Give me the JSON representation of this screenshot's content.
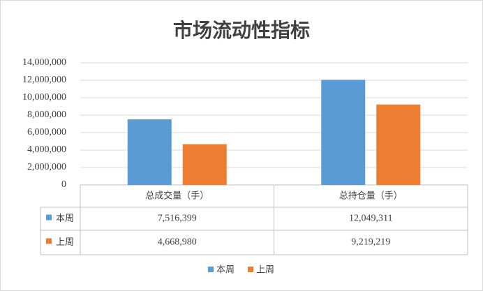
{
  "chart_data": {
    "type": "bar",
    "title": "市场流动性指标",
    "categories": [
      "总成交量（手）",
      "总持仓量（手）"
    ],
    "series": [
      {
        "name": "本周",
        "color": "#5b9bd5",
        "values": [
          7516399,
          12049311
        ],
        "value_labels": [
          "7,516,399",
          "12,049,311"
        ]
      },
      {
        "name": "上周",
        "color": "#ed7d31",
        "values": [
          4668980,
          9219219
        ],
        "value_labels": [
          "4,668,980",
          "9,219,219"
        ]
      }
    ],
    "ylim": [
      0,
      14000000
    ],
    "yticks": [
      0,
      {
        "value": 2000000,
        "label": "2,000,000"
      },
      {
        "value": 4000000,
        "label": "4,000,000"
      },
      {
        "value": 6000000,
        "label": "6,000,000"
      },
      {
        "value": 8000000,
        "label": "8,000,000"
      },
      {
        "value": 10000000,
        "label": "10,000,000"
      },
      {
        "value": 12000000,
        "label": "12,000,000"
      },
      {
        "value": 14000000,
        "label": "14,000,000"
      }
    ],
    "grid": true,
    "legend": "bottom"
  }
}
